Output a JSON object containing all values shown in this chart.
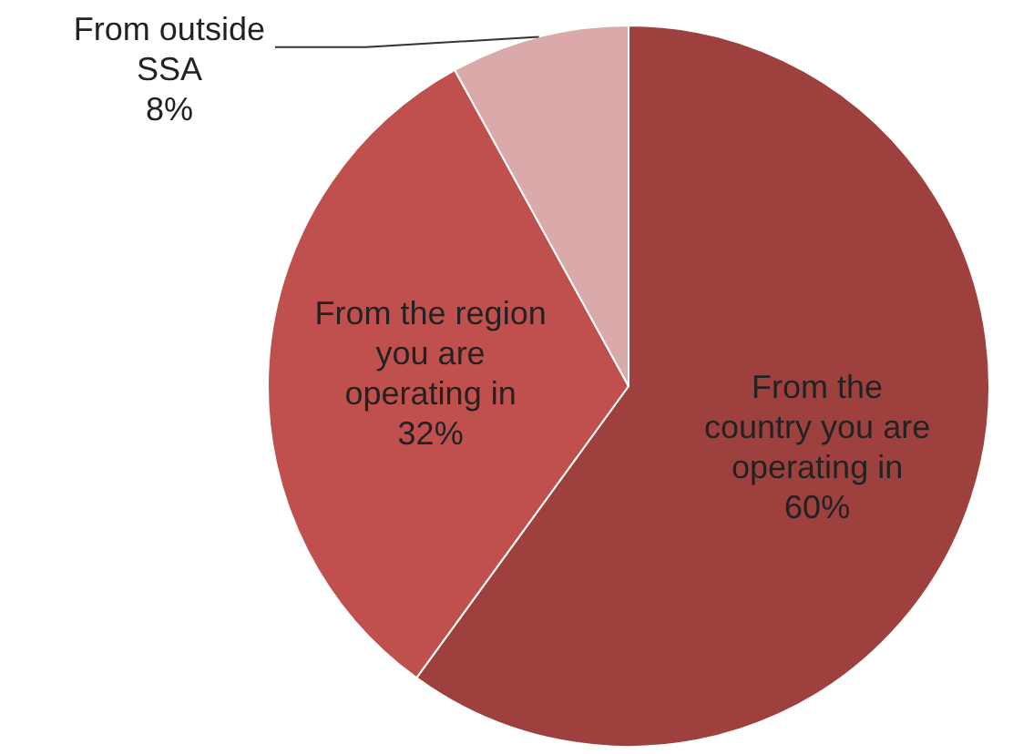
{
  "chart_data": {
    "type": "pie",
    "categories": [
      "From the country you are operating in",
      "From the region you are operating in",
      "From outside SSA"
    ],
    "values": [
      60,
      32,
      8
    ],
    "value_labels": [
      "60%",
      "32%",
      "8%"
    ],
    "colors": [
      "#9e413e",
      "#c0504d",
      "#d9aaa9"
    ],
    "legend": false
  }
}
